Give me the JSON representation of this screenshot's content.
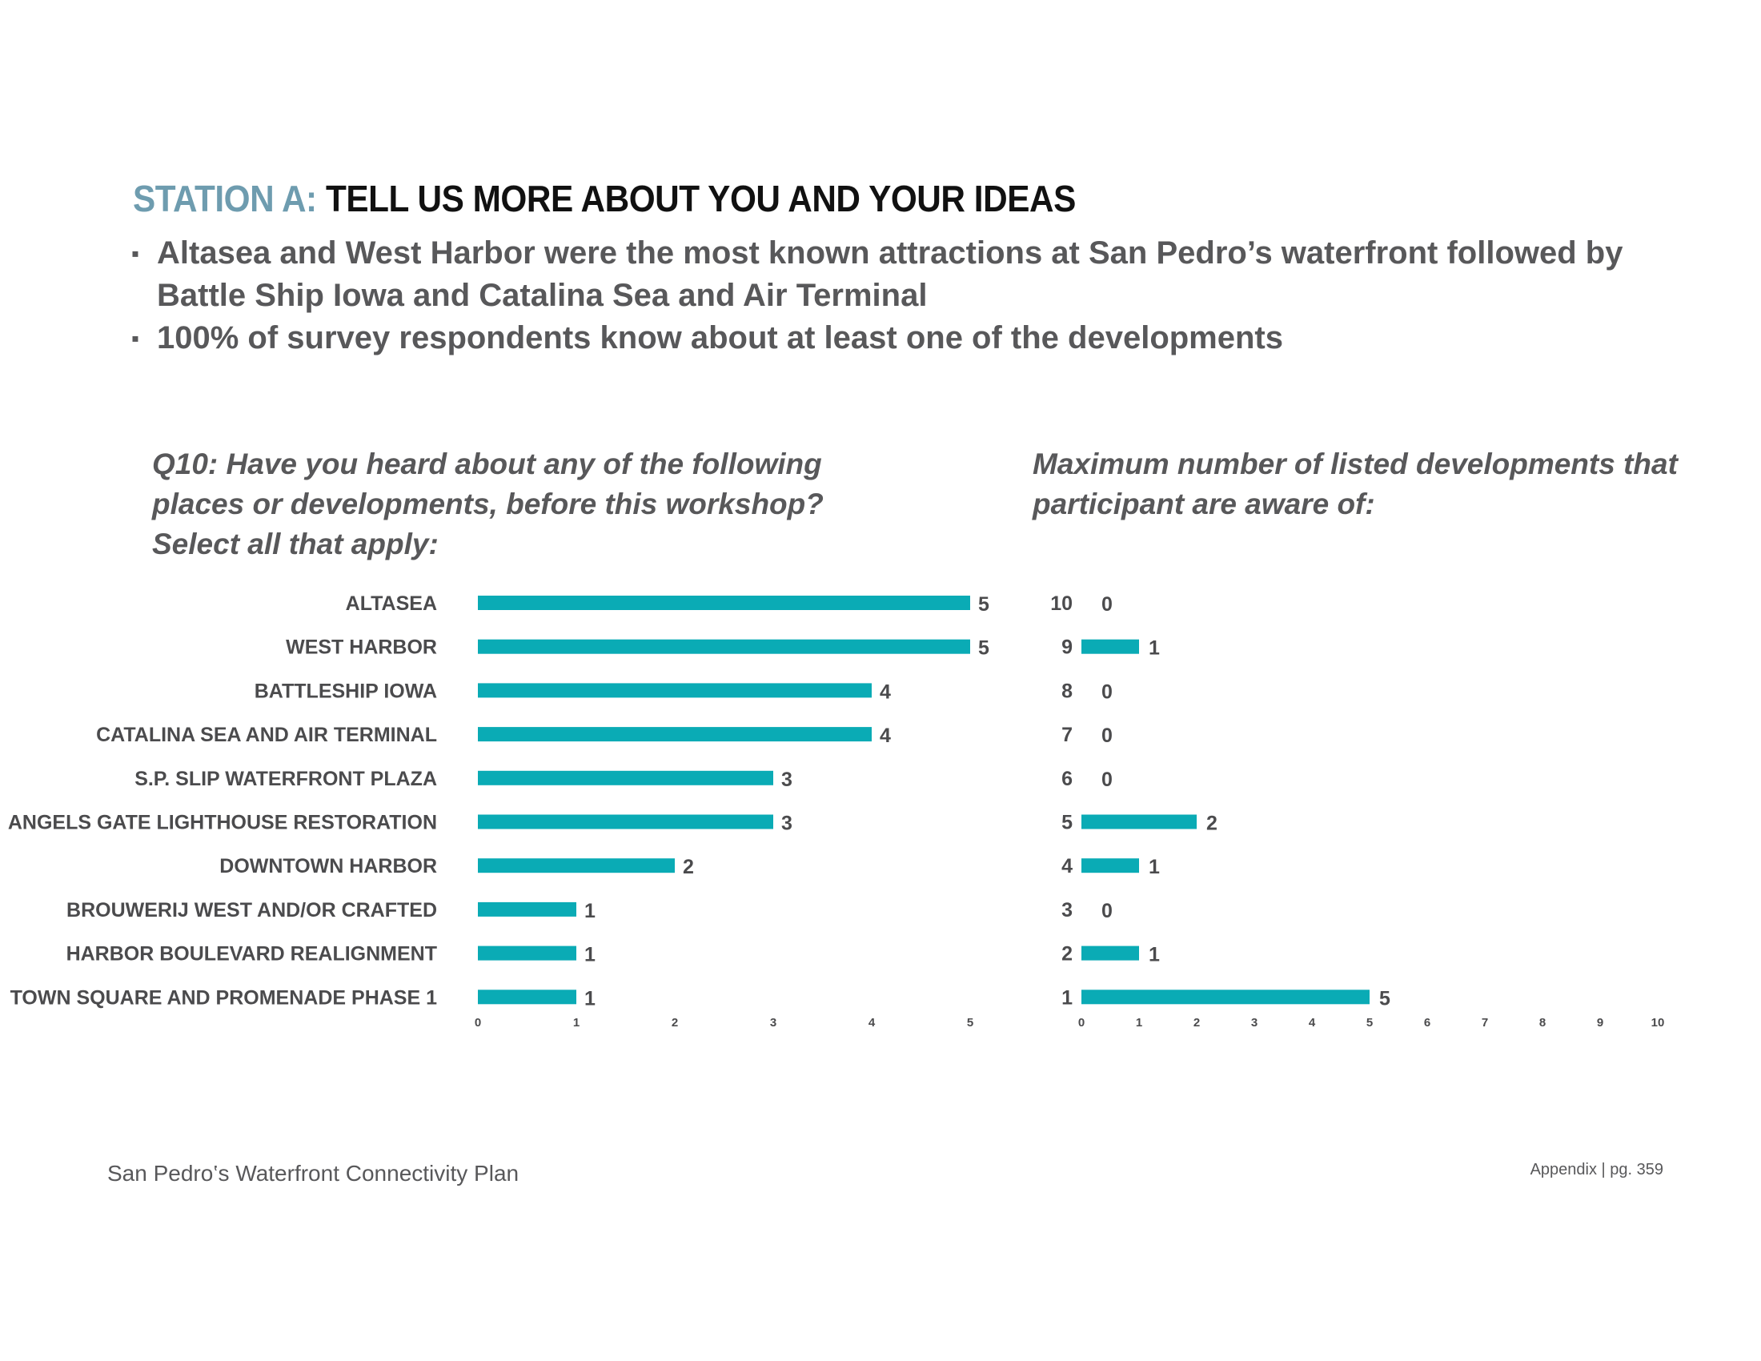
{
  "header": {
    "title_prefix": "STATION A:",
    "title_main": "TELL US MORE ABOUT YOU AND YOUR IDEAS"
  },
  "bullets": [
    "Altasea and West Harbor were the most known attractions at San Pedro’s waterfront followed by Battle Ship Iowa and Catalina Sea and Air Terminal",
    "100% of survey respondents know about at least one of the developments"
  ],
  "bullet_marker": "▪",
  "footer": {
    "left": "San Pedro‛s Waterfront Connectivity Plan",
    "right": "Appendix | pg. 359"
  },
  "colors": {
    "bar": "#0aabb5",
    "title_prefix": "#6e9caf"
  },
  "chart_data": [
    {
      "type": "bar",
      "orientation": "horizontal",
      "title": "Q10: Have you heard about any of the following places or developments, before this workshop? Select all that apply:",
      "categories": [
        "ALTASEA",
        "WEST HARBOR",
        "BATTLESHIP IOWA",
        "CATALINA SEA AND AIR TERMINAL",
        "S.P. SLIP WATERFRONT PLAZA",
        "ANGELS GATE LIGHTHOUSE RESTORATION",
        "DOWNTOWN HARBOR",
        "BROUWERIJ WEST AND/OR CRAFTED",
        "HARBOR BOULEVARD REALIGNMENT",
        "TOWN SQUARE AND PROMENADE PHASE 1"
      ],
      "values": [
        5,
        5,
        4,
        4,
        3,
        3,
        2,
        1,
        1,
        1
      ],
      "xlim": [
        0,
        5
      ],
      "xticks": [
        0,
        1,
        2,
        3,
        4,
        5
      ],
      "xlabel": "",
      "ylabel": "",
      "grid": false,
      "legend": "none"
    },
    {
      "type": "bar",
      "orientation": "horizontal",
      "title": "Maximum number of listed developments that participant are aware of:",
      "categories": [
        "10",
        "9",
        "8",
        "7",
        "6",
        "5",
        "4",
        "3",
        "2",
        "1"
      ],
      "values": [
        0,
        1,
        0,
        0,
        0,
        2,
        1,
        0,
        1,
        5
      ],
      "xlim": [
        0,
        10
      ],
      "xticks": [
        0,
        1,
        2,
        3,
        4,
        5,
        6,
        7,
        8,
        9,
        10
      ],
      "xlabel": "",
      "ylabel": "",
      "grid": false,
      "legend": "none"
    }
  ]
}
